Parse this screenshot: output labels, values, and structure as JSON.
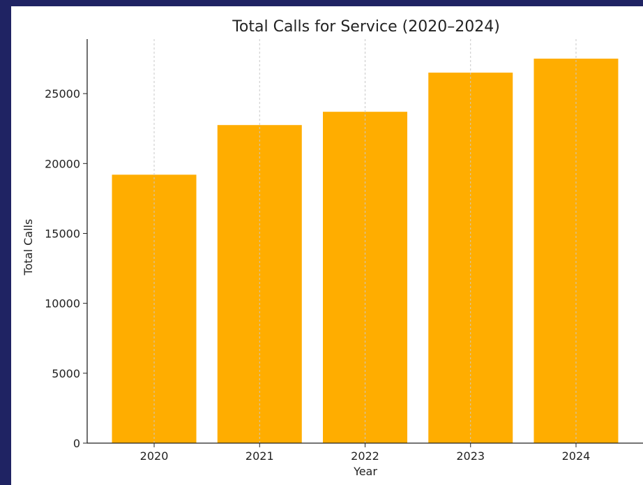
{
  "chart_data": {
    "type": "bar",
    "title": "Total Calls for Service (2020–2024)",
    "xlabel": "Year",
    "ylabel": "Total Calls",
    "categories": [
      "2020",
      "2021",
      "2022",
      "2023",
      "2024"
    ],
    "values": [
      19200,
      22750,
      23700,
      26500,
      27500
    ],
    "ylim": [
      0,
      28900
    ],
    "yticks": [
      0,
      5000,
      10000,
      15000,
      20000,
      25000
    ],
    "grid": "vertical-dashed",
    "colors": {
      "bar": "#ffad00",
      "grid": "#c8c8c8",
      "axis": "#222222",
      "frame_bg": "#1f2363"
    }
  }
}
